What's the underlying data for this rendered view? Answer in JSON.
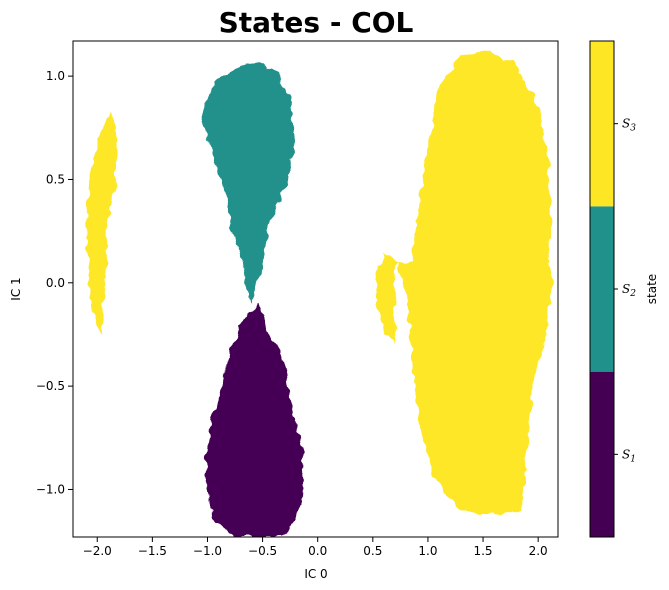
{
  "chart_data": {
    "type": "heatmap",
    "title": "States - COL",
    "xlabel": "IC 0",
    "ylabel": "IC 1",
    "xlim": [
      -2.22,
      2.18
    ],
    "ylim": [
      -1.23,
      1.17
    ],
    "xticks": [
      "−2.0",
      "−1.5",
      "−1.0",
      "−0.5",
      "0.0",
      "0.5",
      "1.0",
      "1.5",
      "2.0"
    ],
    "yticks": [
      "−1.0",
      "−0.5",
      "0.0",
      "0.5",
      "1.0"
    ],
    "xtick_values": [
      -2.0,
      -1.5,
      -1.0,
      -0.5,
      0.0,
      0.5,
      1.0,
      1.5,
      2.0
    ],
    "ytick_values": [
      -1.0,
      -0.5,
      0.0,
      0.5,
      1.0
    ],
    "grid": false,
    "colorbar": {
      "label": "state",
      "categories": [
        {
          "label": "S",
          "subscript": "1",
          "color": "#440154"
        },
        {
          "label": "S",
          "subscript": "2",
          "color": "#21918c"
        },
        {
          "label": "S",
          "subscript": "3",
          "color": "#fde725"
        }
      ]
    },
    "regions": [
      {
        "state": 3,
        "name": "S3",
        "color": "#fde725",
        "x": [
          -2.0,
          -1.95,
          -1.88,
          -1.83,
          -1.83,
          -1.9,
          -1.93,
          -1.97,
          -2.06,
          -2.1,
          -2.08,
          -2.03
        ],
        "y": [
          0.68,
          0.75,
          0.83,
          0.74,
          0.5,
          0.3,
          0.0,
          -0.25,
          -0.1,
          0.3,
          0.45,
          0.6
        ]
      },
      {
        "state": 3,
        "name": "S3",
        "color": "#fde725",
        "x": [
          0.86,
          0.95,
          1.1,
          1.3,
          1.55,
          1.8,
          2.0,
          2.1,
          2.12,
          2.05,
          1.95,
          1.9,
          1.85,
          1.7,
          1.3,
          1.05,
          0.93,
          0.86,
          0.83,
          0.8,
          0.75,
          0.72
        ],
        "y": [
          0.1,
          0.5,
          0.95,
          1.1,
          1.12,
          1.05,
          0.85,
          0.6,
          0.0,
          -0.3,
          -0.5,
          -0.8,
          -1.1,
          -1.12,
          -1.1,
          -0.95,
          -0.7,
          -0.4,
          -0.2,
          -0.05,
          0.05,
          0.1
        ]
      },
      {
        "state": 3,
        "name": "S3",
        "color": "#fde725",
        "x": [
          0.72,
          0.6,
          0.52,
          0.55,
          0.68
        ],
        "y": [
          0.1,
          0.15,
          0.05,
          -0.15,
          -0.3
        ]
      },
      {
        "state": 2,
        "name": "S2",
        "color": "#21918c",
        "x": [
          -1.0,
          -0.88,
          -0.7,
          -0.55,
          -0.37,
          -0.25,
          -0.2,
          -0.27,
          -0.35,
          -0.45,
          -0.5,
          -0.55,
          -0.62,
          -0.68,
          -0.78,
          -0.83,
          -0.9,
          -1.0,
          -1.05
        ],
        "y": [
          0.9,
          1.0,
          1.05,
          1.07,
          1.02,
          0.9,
          0.7,
          0.5,
          0.4,
          0.25,
          0.1,
          0.0,
          -0.1,
          0.1,
          0.25,
          0.4,
          0.55,
          0.7,
          0.8
        ]
      },
      {
        "state": 1,
        "name": "S1",
        "color": "#440154",
        "x": [
          -0.52,
          -0.45,
          -0.37,
          -0.3,
          -0.25,
          -0.15,
          -0.12,
          -0.2,
          -0.3,
          -0.45,
          -0.6,
          -0.75,
          -0.95,
          -1.0,
          -1.02,
          -0.98,
          -0.9,
          -0.8,
          -0.72
        ],
        "y": [
          -0.1,
          -0.25,
          -0.3,
          -0.4,
          -0.55,
          -0.8,
          -1.0,
          -1.15,
          -1.23,
          -1.23,
          -1.23,
          -1.23,
          -1.15,
          -1.0,
          -0.85,
          -0.7,
          -0.55,
          -0.35,
          -0.2
        ]
      }
    ]
  }
}
